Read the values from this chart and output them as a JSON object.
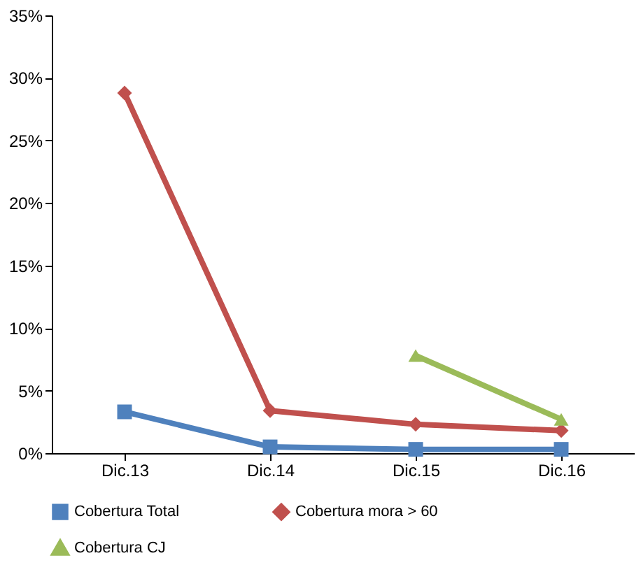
{
  "chart_data": {
    "type": "line",
    "categories": [
      "Dic.13",
      "Dic.14",
      "Dic.15",
      "Dic.16"
    ],
    "series": [
      {
        "name": "Cobertura Total",
        "color": "#4f81bd",
        "marker": "square",
        "values": [
          3.3,
          0.5,
          0.3,
          0.3
        ]
      },
      {
        "name": "Cobertura mora > 60",
        "color": "#c0504d",
        "marker": "diamond",
        "values": [
          28.8,
          3.4,
          2.3,
          1.8
        ]
      },
      {
        "name": "Cobertura CJ",
        "color": "#9bbb59",
        "marker": "triangle",
        "values": [
          null,
          null,
          7.8,
          2.7
        ]
      }
    ],
    "ylim": [
      0,
      35
    ],
    "yticks": [
      {
        "value": 0,
        "label": "0%"
      },
      {
        "value": 5,
        "label": "5%"
      },
      {
        "value": 10,
        "label": "10%"
      },
      {
        "value": 15,
        "label": "15%"
      },
      {
        "value": 20,
        "label": "20%"
      },
      {
        "value": 25,
        "label": "25%"
      },
      {
        "value": 30,
        "label": "30%"
      },
      {
        "value": 35,
        "label": "35%"
      }
    ],
    "grid": false,
    "legend": "bottom",
    "line_style": "solid"
  }
}
